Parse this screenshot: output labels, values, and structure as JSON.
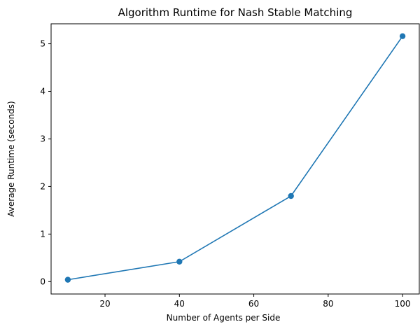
{
  "chart_data": {
    "type": "line",
    "title": "Algorithm Runtime for Nash Stable Matching",
    "xlabel": "Number of Agents per Side",
    "ylabel": "Average Runtime (seconds)",
    "xlim": [
      5.5,
      104.5
    ],
    "ylim": [
      -0.26,
      5.42
    ],
    "xticks": [
      20,
      40,
      60,
      80,
      100
    ],
    "yticks": [
      0,
      1,
      2,
      3,
      4,
      5
    ],
    "grid": false,
    "series": [
      {
        "x": [
          10,
          40,
          70,
          100
        ],
        "values": [
          0.04,
          0.42,
          1.8,
          5.16
        ],
        "color": "#1f77b4",
        "marker": "circle"
      }
    ]
  }
}
